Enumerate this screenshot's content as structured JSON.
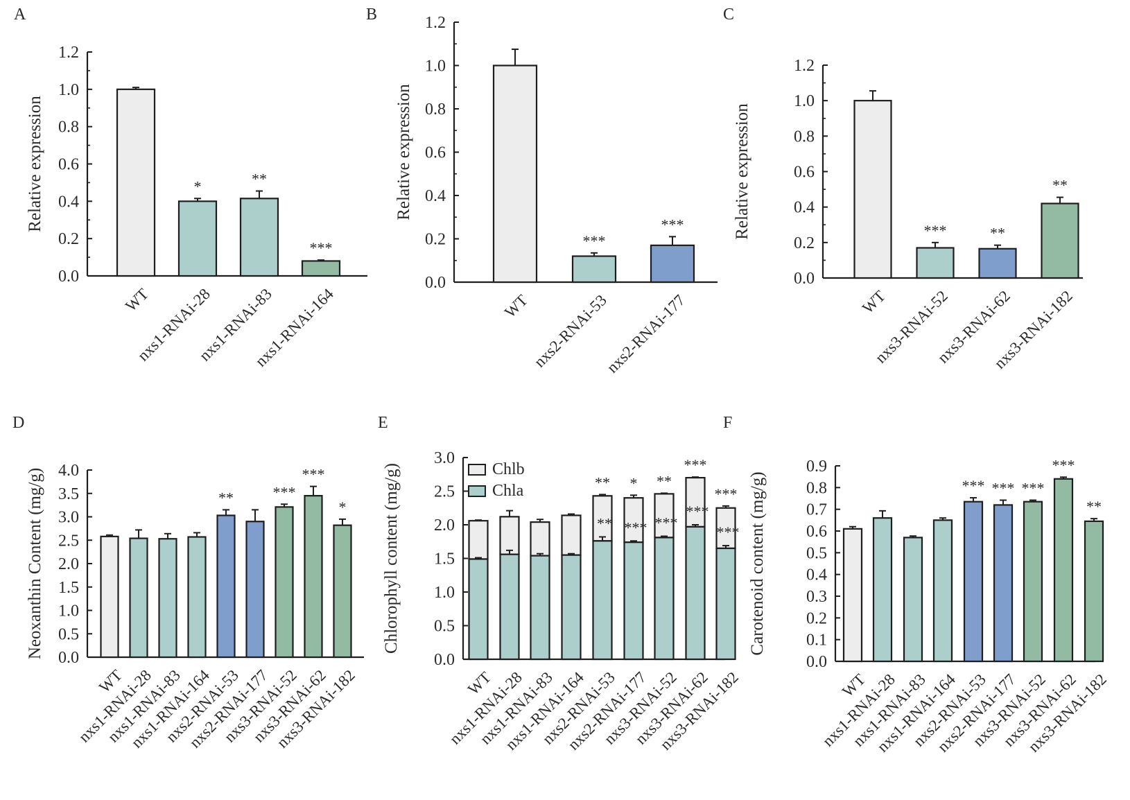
{
  "colors": {
    "wt": "#ededee",
    "nxs1": "#adcfcc",
    "nxs2": "#7f9ecc",
    "nxs3": "#93baa3",
    "chlb": "#ededee",
    "chla": "#adcfcc",
    "stroke": "#1e1e1e"
  },
  "chart_data": [
    {
      "id": "A",
      "panel_label": "A",
      "type": "bar",
      "ylabel": "Relative expression",
      "xlabel": "",
      "ylim": [
        0,
        1.2
      ],
      "yticks": [
        0.0,
        0.2,
        0.4,
        0.6,
        0.8,
        1.0,
        1.2
      ],
      "tick_format": 1,
      "categories": [
        "WT",
        "nxs1-RNAi-28",
        "nxs1-RNAi-83",
        "nxs1-RNAi-164"
      ],
      "groups": [
        "wt",
        "nxs1",
        "nxs1",
        "nxs3"
      ],
      "values": [
        1.0,
        0.4,
        0.415,
        0.08
      ],
      "errors": [
        0.01,
        0.015,
        0.04,
        0.005
      ],
      "significance": [
        "",
        "*",
        "**",
        "***"
      ]
    },
    {
      "id": "B",
      "panel_label": "B",
      "type": "bar",
      "ylabel": "Relative expression",
      "xlabel": "",
      "ylim": [
        0,
        1.2
      ],
      "yticks": [
        0.0,
        0.2,
        0.4,
        0.6,
        0.8,
        1.0,
        1.2
      ],
      "tick_format": 1,
      "categories": [
        "WT",
        "nxs2-RNAi-53",
        "nxs2-RNAi-177"
      ],
      "groups": [
        "wt",
        "nxs1",
        "nxs2"
      ],
      "values": [
        1.0,
        0.12,
        0.17
      ],
      "errors": [
        0.075,
        0.015,
        0.04
      ],
      "significance": [
        "",
        "***",
        "***"
      ]
    },
    {
      "id": "C",
      "panel_label": "C",
      "type": "bar",
      "ylabel": "Relative expression",
      "xlabel": "",
      "ylim": [
        0,
        1.2
      ],
      "yticks": [
        0.0,
        0.2,
        0.4,
        0.6,
        0.8,
        1.0,
        1.2
      ],
      "tick_format": 1,
      "categories": [
        "WT",
        "nxs3-RNAi-52",
        "nxs3-RNAi-62",
        "nxs3-RNAi-182"
      ],
      "groups": [
        "wt",
        "nxs1",
        "nxs2",
        "nxs3"
      ],
      "values": [
        1.0,
        0.17,
        0.165,
        0.42
      ],
      "errors": [
        0.055,
        0.03,
        0.02,
        0.035
      ],
      "significance": [
        "",
        "***",
        "**",
        "**"
      ]
    },
    {
      "id": "D",
      "panel_label": "D",
      "type": "bar",
      "ylabel": "Neoxanthin Content (mg/g)",
      "xlabel": "",
      "ylim": [
        0,
        4.0
      ],
      "yticks": [
        0.0,
        0.5,
        1.0,
        1.5,
        2.0,
        2.5,
        3.0,
        3.5,
        4.0
      ],
      "tick_format": 1,
      "categories": [
        "WT",
        "nxs1-RNAi-28",
        "nxs1-RNAi-83",
        "nxs1-RNAi-164",
        "nxs2-RNAi-53",
        "nxs2-RNAi-177",
        "nxs3-RNAi-52",
        "nxs3-RNAi-62",
        "nxs3-RNAi-182"
      ],
      "groups": [
        "wt",
        "nxs1",
        "nxs1",
        "nxs1",
        "nxs2",
        "nxs2",
        "nxs3",
        "nxs3",
        "nxs3"
      ],
      "values": [
        2.58,
        2.54,
        2.53,
        2.57,
        3.03,
        2.9,
        3.21,
        3.45,
        2.82
      ],
      "errors": [
        0.03,
        0.18,
        0.11,
        0.09,
        0.12,
        0.25,
        0.06,
        0.2,
        0.13
      ],
      "significance": [
        "",
        "",
        "",
        "",
        "**",
        "",
        "***",
        "***",
        "*"
      ]
    },
    {
      "id": "E",
      "panel_label": "E",
      "type": "stacked-bar",
      "ylabel": "Chlorophyll content (mg/g)",
      "xlabel": "",
      "ylim": [
        0,
        3.0
      ],
      "yticks": [
        0.0,
        0.5,
        1.0,
        1.5,
        2.0,
        2.5,
        3.0
      ],
      "tick_format": 1,
      "legend_position": "top-left",
      "categories": [
        "WT",
        "nxs1-RNAi-28",
        "nxs1-RNAi-83",
        "nxs1-RNAi-164",
        "nxs2-RNAi-53",
        "nxs2-RNAi-177",
        "nxs3-RNAi-52",
        "nxs3-RNAi-62",
        "nxs3-RNAi-182"
      ],
      "series": [
        {
          "name": "Chla",
          "color_key": "chla",
          "values": [
            1.49,
            1.56,
            1.54,
            1.55,
            1.76,
            1.74,
            1.81,
            1.97,
            1.65
          ],
          "errors": [
            0.02,
            0.06,
            0.03,
            0.02,
            0.06,
            0.02,
            0.02,
            0.03,
            0.04
          ],
          "significance": [
            "",
            "",
            "",
            "",
            "**",
            "***",
            "***",
            "***",
            "***"
          ]
        },
        {
          "name": "Chlb",
          "color_key": "chlb",
          "values": [
            0.57,
            0.56,
            0.5,
            0.59,
            0.67,
            0.66,
            0.65,
            0.73,
            0.6
          ],
          "totals": [
            2.06,
            2.12,
            2.04,
            2.14,
            2.43,
            2.4,
            2.46,
            2.7,
            2.25
          ],
          "errors": [
            0.01,
            0.09,
            0.04,
            0.02,
            0.02,
            0.04,
            0.01,
            0.01,
            0.03
          ],
          "significance": [
            "",
            "",
            "",
            "",
            "**",
            "*",
            "**",
            "***",
            "***"
          ]
        }
      ],
      "legend": [
        "Chlb",
        "Chla"
      ]
    },
    {
      "id": "F",
      "panel_label": "F",
      "type": "bar",
      "ylabel": "Carotenoid content (mg/g)",
      "xlabel": "",
      "ylim": [
        0,
        0.9
      ],
      "yticks": [
        0.0,
        0.1,
        0.2,
        0.3,
        0.4,
        0.5,
        0.6,
        0.7,
        0.8,
        0.9
      ],
      "tick_format": 1,
      "categories": [
        "WT",
        "nxs1-RNAi-28",
        "nxs1-RNAi-83",
        "nxs1-RNAi-164",
        "nxs2-RNAi-53",
        "nxs2-RNAi-177",
        "nxs3-RNAi-52",
        "nxs3-RNAi-62",
        "nxs3-RNAi-182"
      ],
      "groups": [
        "wt",
        "nxs1",
        "nxs1",
        "nxs1",
        "nxs2",
        "nxs2",
        "nxs3",
        "nxs3",
        "nxs3"
      ],
      "values": [
        0.61,
        0.66,
        0.57,
        0.65,
        0.735,
        0.72,
        0.735,
        0.84,
        0.645
      ],
      "errors": [
        0.01,
        0.033,
        0.007,
        0.01,
        0.018,
        0.022,
        0.007,
        0.008,
        0.012
      ],
      "significance": [
        "",
        "",
        "",
        "",
        "***",
        "***",
        "***",
        "***",
        "**"
      ]
    }
  ]
}
